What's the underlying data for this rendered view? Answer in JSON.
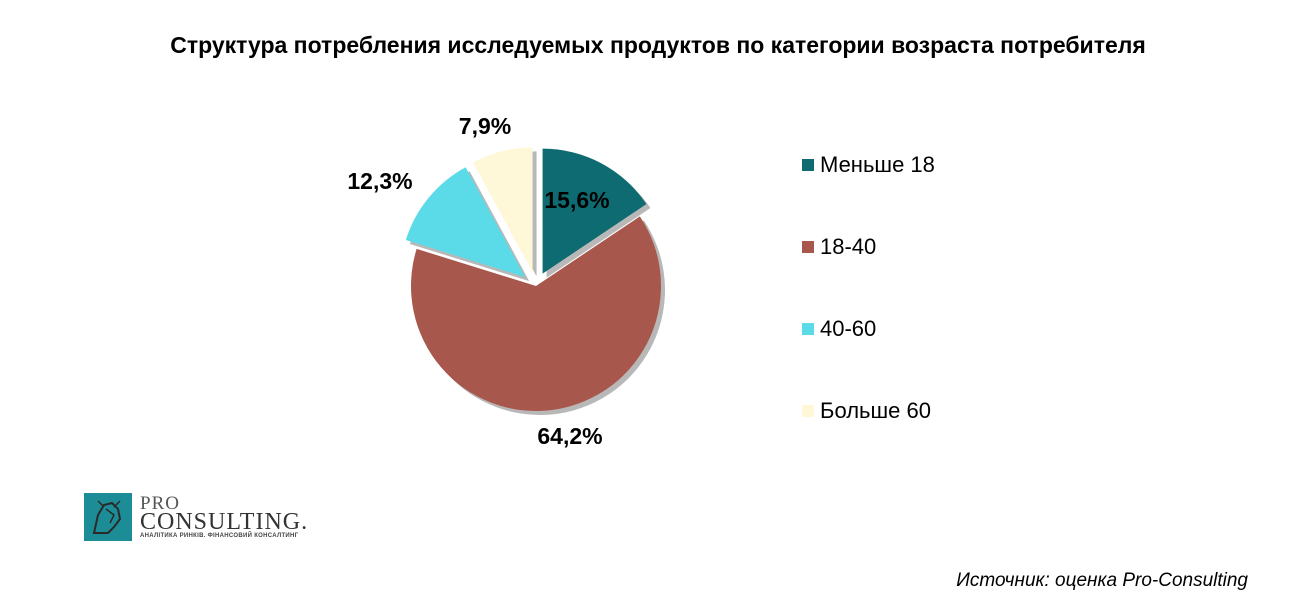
{
  "chart_data": {
    "type": "pie",
    "title": "Структура потребления исследуемых продуктов по категории возраста потребителя",
    "categories": [
      "Меньше 18",
      "18-40",
      "40-60",
      "Больше 60"
    ],
    "values": [
      15.6,
      64.2,
      12.3,
      7.9
    ],
    "value_labels": [
      "15,6%",
      "64,2%",
      "12,3%",
      "7,9%"
    ],
    "colors": [
      "#0e6b72",
      "#a8574c",
      "#5bdbe8",
      "#fff8d8"
    ],
    "exploded": [
      true,
      false,
      true,
      true
    ],
    "legend_position": "right"
  },
  "source_text": "Источник: оценка Pro-Consulting",
  "logo": {
    "pro": "PRO",
    "consulting": "CONSULTING.",
    "tagline": "АНАЛІТИКА РИНКІВ. ФІНАНСОВИЙ КОНСАЛТИНГ"
  }
}
